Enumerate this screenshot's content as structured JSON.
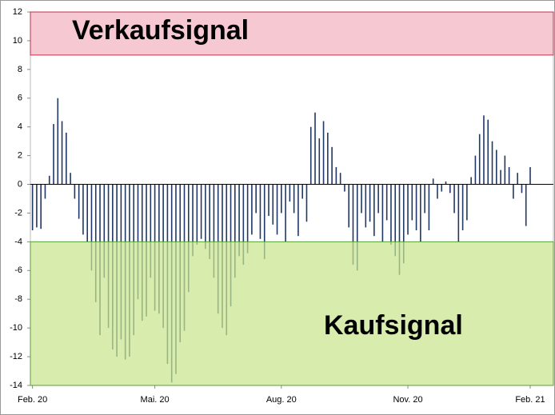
{
  "chart_data": {
    "type": "bar",
    "categories": [
      "Feb. 20",
      null,
      null,
      null,
      null,
      null,
      null,
      null,
      null,
      null,
      null,
      null,
      null,
      null,
      null,
      null,
      null,
      null,
      null,
      null,
      null,
      null,
      null,
      null,
      null,
      null,
      null,
      null,
      null,
      "Mai. 20",
      null,
      null,
      null,
      null,
      null,
      null,
      null,
      null,
      null,
      null,
      null,
      null,
      null,
      null,
      null,
      null,
      null,
      null,
      null,
      null,
      null,
      null,
      null,
      null,
      null,
      null,
      null,
      null,
      null,
      "Aug. 20",
      null,
      null,
      null,
      null,
      null,
      null,
      null,
      null,
      null,
      null,
      null,
      null,
      null,
      null,
      null,
      null,
      null,
      null,
      null,
      null,
      null,
      null,
      null,
      null,
      null,
      null,
      null,
      null,
      null,
      "Nov. 20",
      null,
      null,
      null,
      null,
      null,
      null,
      null,
      null,
      null,
      null,
      null,
      null,
      null,
      null,
      null,
      null,
      null,
      null,
      null,
      null,
      null,
      null,
      null,
      null,
      null,
      null,
      null,
      null,
      "Feb. 21",
      null,
      null,
      null,
      null,
      null
    ],
    "values": [
      -3.2,
      -3.0,
      -3.1,
      -1.0,
      0.6,
      4.2,
      6.0,
      4.4,
      3.6,
      0.8,
      -1.0,
      -2.4,
      -3.5,
      -4.0,
      -6.0,
      -8.2,
      -10.5,
      -6.5,
      -10.0,
      -11.5,
      -12.0,
      -10.8,
      -12.2,
      -12.0,
      -10.5,
      -8.0,
      -9.5,
      -9.2,
      -6.5,
      -8.8,
      -9.0,
      -10.0,
      -12.5,
      -13.8,
      -13.2,
      -11.0,
      -10.2,
      -7.5,
      -5.0,
      -4.2,
      -3.8,
      -4.5,
      -5.2,
      -6.5,
      -9.0,
      -10.0,
      -10.5,
      -8.5,
      -6.5,
      -5.0,
      -5.6,
      -4.8,
      -3.5,
      -2.0,
      -3.8,
      -5.2,
      -2.2,
      -2.8,
      -3.5,
      -2.0,
      -4.0,
      -1.2,
      -2.0,
      -3.6,
      -1.0,
      -2.6,
      4.0,
      5.0,
      3.2,
      4.4,
      3.6,
      2.6,
      1.2,
      0.8,
      -0.5,
      -3.0,
      -5.6,
      -6.0,
      -2.0,
      -3.0,
      -2.6,
      -3.6,
      -2.0,
      -4.0,
      -2.5,
      -4.2,
      -5.0,
      -6.3,
      -5.5,
      -3.5,
      -2.5,
      -3.2,
      -4.0,
      -2.0,
      -3.2,
      0.4,
      -1.0,
      -0.5,
      0.2,
      -0.6,
      -2.0,
      -4.0,
      -3.2,
      -2.5,
      0.5,
      2.0,
      3.5,
      4.8,
      4.5,
      3.0,
      2.4,
      1.0,
      2.0,
      1.2,
      -1.0,
      0.8,
      -0.6,
      -2.9,
      1.2,
      null,
      null,
      null,
      null,
      null
    ],
    "color": "#1f3864",
    "ylim": [
      -14,
      12
    ],
    "yticks": [
      -14,
      -12,
      -10,
      -8,
      -6,
      -4,
      -2,
      0,
      2,
      4,
      6,
      8,
      10,
      12
    ],
    "zones": [
      {
        "from": 9,
        "to": 12,
        "label": "Verkaufsignal",
        "color": "#f6c8d2",
        "border": "#c0304a"
      },
      {
        "from": -14,
        "to": -4,
        "label": "Kaufsignal",
        "color": "#c9e58f",
        "border": "#5a9e3a"
      }
    ]
  }
}
